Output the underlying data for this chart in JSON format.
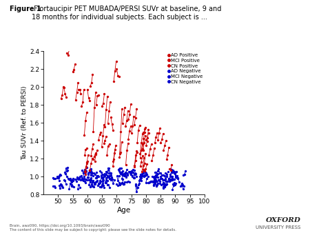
{
  "title_bold": "Figure 1",
  "title_rest": " Flortaucipir PET MUBADA/PERSI SUVr at baseline, 9 and\n18 months for individual subjects. Each subject is ...",
  "xlabel": "Age",
  "ylabel": "Tau SUVr (Ref. to PERSI)",
  "xlim": [
    45,
    100
  ],
  "ylim": [
    0.8,
    2.4
  ],
  "xticks": [
    50,
    55,
    60,
    65,
    70,
    75,
    80,
    85,
    90,
    95,
    100
  ],
  "yticks": [
    0.8,
    1.0,
    1.2,
    1.4,
    1.6,
    1.8,
    2.0,
    2.2,
    2.4
  ],
  "legend_entries": [
    "AD Positive",
    "MCI Positive",
    "CN Positive",
    "AD Negative",
    "MCI Negative",
    "CN Negative"
  ],
  "legend_colors": [
    "#cc0000",
    "#cc0000",
    "#cc0000",
    "#0000cc",
    "#0000cc",
    "#0000cc"
  ],
  "positive_color": "#cc0000",
  "negative_color": "#0000cc",
  "footer_left1": "Brain, awz090, https://doi.org/10.1093/brain/awz090",
  "footer_left2": "The content of this slide may be subject to copyright: please see the slide notes for details.",
  "footer_right1": "OXFORD",
  "footer_right2": "UNIVERSITY PRESS",
  "background_color": "#ffffff",
  "plot_bg": "#ffffff"
}
